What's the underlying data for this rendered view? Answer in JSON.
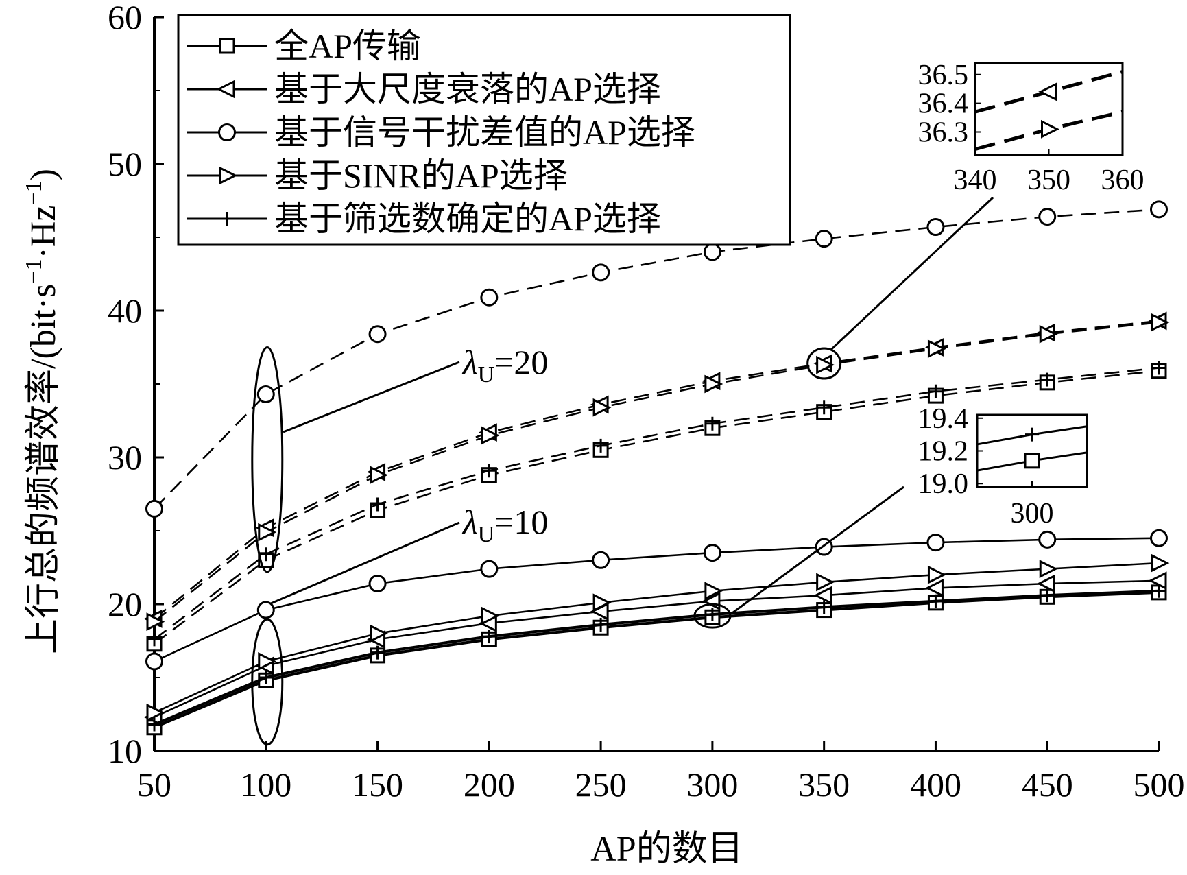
{
  "chart_data": {
    "type": "line",
    "xlabel": "AP的数目",
    "ylabel": "上行总的频谱效率/(bit·s⁻¹·Hz⁻¹)",
    "ylabel_parts": {
      "main": "上行总的频谱效率/(bit·s",
      "exp1": "−1",
      "mid": "·Hz",
      "exp2": "−1",
      "end": ")"
    },
    "x": [
      50,
      100,
      150,
      200,
      250,
      300,
      350,
      400,
      450,
      500
    ],
    "xlim": [
      50,
      500
    ],
    "ylim": [
      10,
      60
    ],
    "xticks": [
      "50",
      "100",
      "150",
      "200",
      "250",
      "300",
      "350",
      "400",
      "450",
      "500"
    ],
    "yticks": [
      "10",
      "20",
      "30",
      "40",
      "50",
      "60"
    ],
    "legend_position": "top-left",
    "groups": [
      {
        "lambda": "λU=20",
        "label_main": "λ",
        "label_sub": "U",
        "label_rest": "=20",
        "style": "dashed",
        "series": [
          {
            "name": "全AP传输",
            "marker": "square",
            "values": [
              17.3,
              23.0,
              26.4,
              28.8,
              30.5,
              32.0,
              33.1,
              34.2,
              35.1,
              35.9
            ]
          },
          {
            "name": "基于大尺度衰落的AP选择",
            "marker": "triangle-left",
            "values": [
              19.0,
              25.2,
              29.0,
              31.7,
              33.6,
              35.2,
              36.4,
              37.5,
              38.5,
              39.3
            ]
          },
          {
            "name": "基于信号干扰差值的AP选择",
            "marker": "circle",
            "values": [
              26.5,
              34.3,
              38.4,
              40.9,
              42.6,
              44.0,
              44.9,
              45.7,
              46.4,
              46.9
            ]
          },
          {
            "name": "基于SINR的AP选择",
            "marker": "triangle-right",
            "values": [
              18.8,
              24.9,
              28.8,
              31.5,
              33.4,
              35.0,
              36.3,
              37.4,
              38.4,
              39.2
            ]
          },
          {
            "name": "基于筛选数确定的AP选择",
            "marker": "plus",
            "values": [
              17.6,
              23.4,
              26.8,
              29.1,
              30.8,
              32.3,
              33.4,
              34.5,
              35.3,
              36.1
            ]
          }
        ]
      },
      {
        "lambda": "λU=10",
        "label_main": "λ",
        "label_sub": "U",
        "label_rest": "=10",
        "style": "solid",
        "series": [
          {
            "name": "全AP传输",
            "marker": "square",
            "values": [
              11.6,
              14.8,
              16.5,
              17.6,
              18.4,
              19.1,
              19.6,
              20.1,
              20.5,
              20.8
            ]
          },
          {
            "name": "基于大尺度衰落的AP选择",
            "marker": "triangle-left",
            "values": [
              12.3,
              15.8,
              17.6,
              18.7,
              19.5,
              20.2,
              20.6,
              21.1,
              21.4,
              21.6
            ]
          },
          {
            "name": "基于信号干扰差值的AP选择",
            "marker": "circle",
            "values": [
              16.1,
              19.6,
              21.4,
              22.4,
              23.0,
              23.5,
              23.9,
              24.2,
              24.4,
              24.5
            ]
          },
          {
            "name": "基于SINR的AP选择",
            "marker": "triangle-right",
            "values": [
              12.6,
              16.1,
              18.0,
              19.2,
              20.1,
              20.9,
              21.5,
              22.0,
              22.4,
              22.8
            ]
          },
          {
            "name": "基于筛选数确定的AP选择",
            "marker": "plus",
            "values": [
              11.8,
              15.0,
              16.7,
              17.8,
              18.6,
              19.3,
              19.8,
              20.2,
              20.6,
              20.9
            ]
          }
        ]
      }
    ],
    "insets": [
      {
        "id": "inset-top",
        "xlim": [
          340,
          360
        ],
        "ylim": [
          36.22,
          36.54
        ],
        "xticks": [
          "340",
          "350",
          "360"
        ],
        "yticks": [
          "36.3",
          "36.4",
          "36.5"
        ],
        "style": "dashed",
        "lines": [
          {
            "marker": "triangle-left",
            "x": [
              340,
              350,
              360
            ],
            "y": [
              36.37,
              36.44,
              36.51
            ]
          },
          {
            "marker": "triangle-right",
            "x": [
              340,
              350,
              360
            ],
            "y": [
              36.24,
              36.31,
              36.37
            ]
          }
        ]
      },
      {
        "id": "inset-bottom",
        "xlim": [
          280,
          320
        ],
        "ylim": [
          18.98,
          19.42
        ],
        "xticks": [
          "300"
        ],
        "yticks": [
          "19.0",
          "19.2",
          "19.4"
        ],
        "style": "solid",
        "lines": [
          {
            "marker": "plus",
            "x": [
              280,
              300,
              320
            ],
            "y": [
              19.24,
              19.3,
              19.35
            ]
          },
          {
            "marker": "square",
            "x": [
              280,
              300,
              320
            ],
            "y": [
              19.08,
              19.14,
              19.19
            ]
          }
        ]
      }
    ]
  }
}
